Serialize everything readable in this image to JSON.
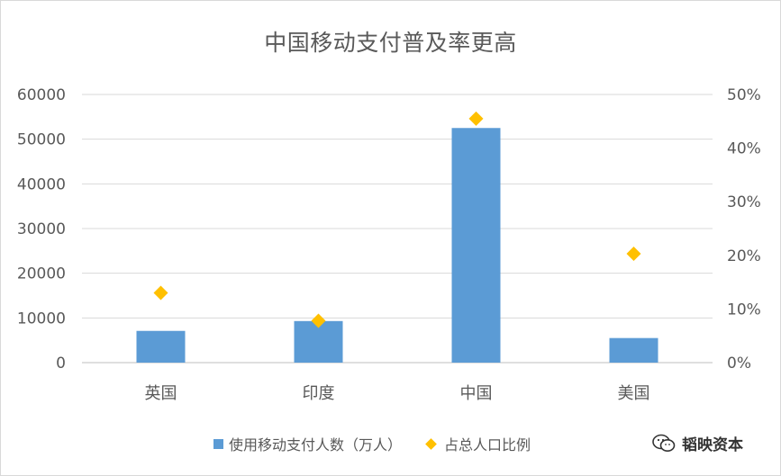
{
  "chart_data": {
    "type": "bar",
    "title": "中国移动支付普及率更高",
    "categories": [
      "英国",
      "印度",
      "中国",
      "美国"
    ],
    "series": [
      {
        "name": "使用移动支付人数（万人）",
        "type": "bar",
        "axis": "left",
        "color": "#5b9bd5",
        "values": [
          7100,
          9300,
          52500,
          5500
        ]
      },
      {
        "name": "占总人口比例",
        "type": "scatter",
        "marker": "diamond",
        "axis": "right",
        "color": "#ffc000",
        "values": [
          0.13,
          0.078,
          0.455,
          0.203
        ]
      }
    ],
    "y_left": {
      "ylim": [
        0,
        60000
      ],
      "ticks": [
        0,
        10000,
        20000,
        30000,
        40000,
        50000,
        60000
      ],
      "tick_labels": [
        "0",
        "10000",
        "20000",
        "30000",
        "40000",
        "50000",
        "60000"
      ]
    },
    "y_right": {
      "ylim": [
        0,
        0.5
      ],
      "ticks": [
        0,
        0.1,
        0.2,
        0.3,
        0.4,
        0.5
      ],
      "tick_labels": [
        "0%",
        "10%",
        "20%",
        "30%",
        "40%",
        "50%"
      ]
    },
    "grid": true,
    "legend": "bottom",
    "xlabel": "",
    "ylabel": ""
  },
  "watermark": {
    "text": "韬映资本",
    "icon": "wechat-icon"
  }
}
